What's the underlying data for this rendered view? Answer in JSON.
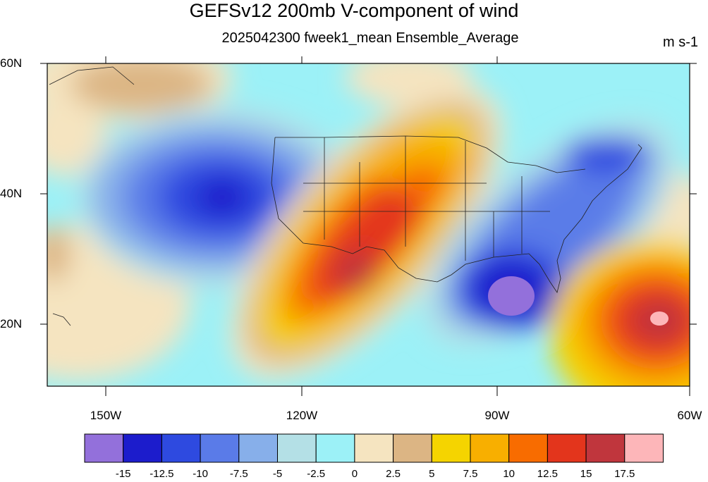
{
  "title": "GEFSv12 200mb V-component of wind",
  "subtitle": "2025042300 fweek1_mean Ensemble_Average",
  "units": "m s-1",
  "lat_labels": [
    "60N",
    "40N",
    "20N"
  ],
  "lon_labels": [
    "150W",
    "120W",
    "90W",
    "60W"
  ],
  "colorbar": {
    "colors": [
      "#9370DB",
      "#1C1CCC",
      "#2E4AE0",
      "#5A7BE8",
      "#87AFEA",
      "#B4E0E6",
      "#9CF1F7",
      "#F5E4C0",
      "#DCB584",
      "#F5D400",
      "#F8AF00",
      "#F86C00",
      "#E3351C",
      "#C0363D",
      "#FDB6B9"
    ],
    "labels": [
      "-15",
      "-12.5",
      "-10",
      "-7.5",
      "-5",
      "-2.5",
      "0",
      "2.5",
      "5",
      "7.5",
      "10",
      "12.5",
      "15",
      "17.5"
    ]
  },
  "chart_data": {
    "type": "heatmap",
    "title": "GEFSv12 200mb V-component of wind",
    "subtitle": "2025042300 fweek1_mean Ensemble_Average",
    "units": "m s-1",
    "lon_range": [
      -160,
      -60
    ],
    "lat_range": [
      10,
      60
    ],
    "lon_ticks": [
      -150,
      -120,
      -90,
      -60
    ],
    "lat_ticks": [
      60,
      40,
      20
    ],
    "levels": [
      -15,
      -12.5,
      -10,
      -7.5,
      -5,
      -2.5,
      0,
      2.5,
      5,
      7.5,
      10,
      12.5,
      15,
      17.5
    ],
    "features": [
      {
        "kind": "minimum",
        "lon": -135,
        "lat": 40,
        "value": -12.5
      },
      {
        "kind": "maximum",
        "lon": -110,
        "lat": 28,
        "value": 15
      },
      {
        "kind": "maximum",
        "lon": -103,
        "lat": 40,
        "value": 12.5
      },
      {
        "kind": "minimum",
        "lon": -88,
        "lat": 25,
        "value": -15
      },
      {
        "kind": "minimum",
        "lon": -75,
        "lat": 44,
        "value": -10
      },
      {
        "kind": "maximum",
        "lon": -64,
        "lat": 21,
        "value": 17.5
      }
    ]
  }
}
